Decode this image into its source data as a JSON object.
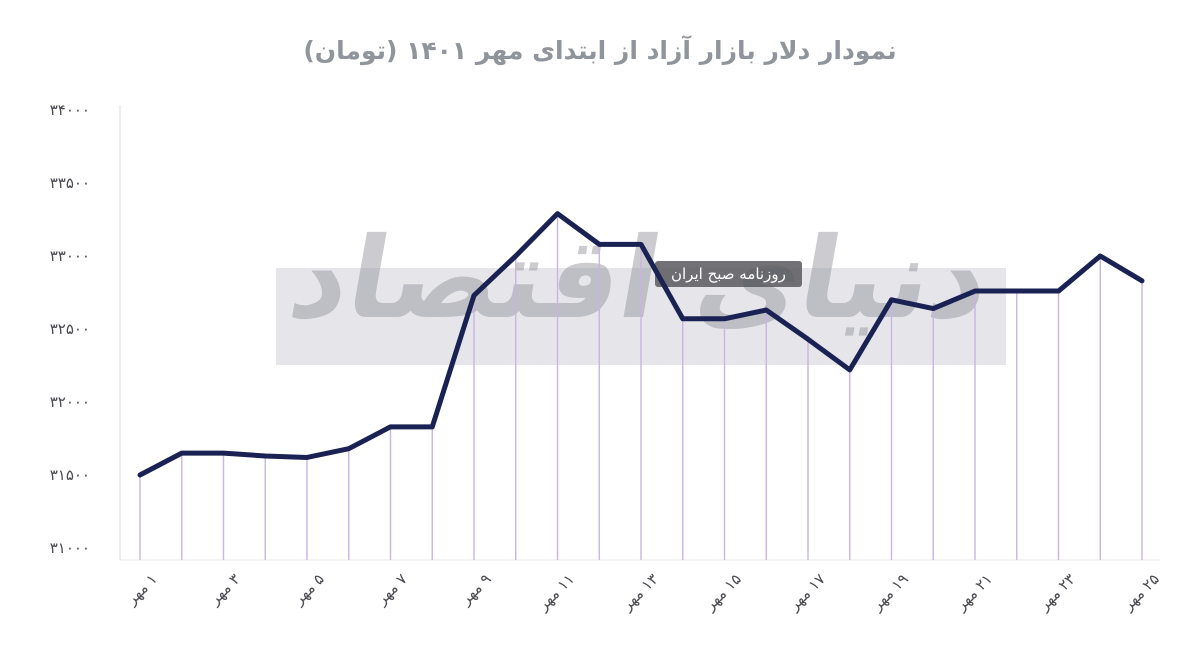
{
  "title": "نمودار دلار بازار آزاد از ابتدای مهر ۱۴۰۱ (تومان)",
  "watermark": {
    "main": "دنیای اقتصاد",
    "badge": "روزنامه صبح ایران"
  },
  "chart_data": {
    "type": "line",
    "title": "نمودار دلار بازار آزاد از ابتدای مهر ۱۴۰۱ (تومان)",
    "x": [
      1,
      2,
      3,
      4,
      5,
      6,
      7,
      8,
      9,
      10,
      11,
      12,
      13,
      14,
      15,
      16,
      17,
      18,
      19,
      20,
      21,
      22,
      23,
      24,
      25
    ],
    "x_unit": "مهر",
    "values": [
      31500,
      31650,
      31650,
      31630,
      31620,
      31680,
      31830,
      31830,
      32730,
      33000,
      33290,
      33080,
      33080,
      32570,
      32570,
      32630,
      32430,
      32220,
      32700,
      32640,
      32760,
      32760,
      32760,
      33000,
      32830
    ],
    "x_tick_labels": [
      "۱ مهر",
      "۳ مهر",
      "۵ مهر",
      "۷ مهر",
      "۹ مهر",
      "۱۱ مهر",
      "۱۳ مهر",
      "۱۵ مهر",
      "۱۷ مهر",
      "۱۹ مهر",
      "۲۱ مهر",
      "۲۳ مهر",
      "۲۵ مهر"
    ],
    "y_ticks": [
      34000,
      33500,
      33000,
      32500,
      32000,
      31500,
      31000
    ],
    "y_tick_labels": [
      "۳۴۰۰۰",
      "۳۳۵۰۰",
      "۳۳۰۰۰",
      "۳۲۵۰۰",
      "۳۲۰۰۰",
      "۳۱۵۰۰",
      "۳۱۰۰۰"
    ],
    "ylim": [
      31000,
      34000
    ],
    "grid": false,
    "legend": "none",
    "line_color": "#1a2254",
    "stem_color": "#c9b4e4",
    "axis_color": "#dcdce3",
    "label_color": "#4b4b52"
  }
}
